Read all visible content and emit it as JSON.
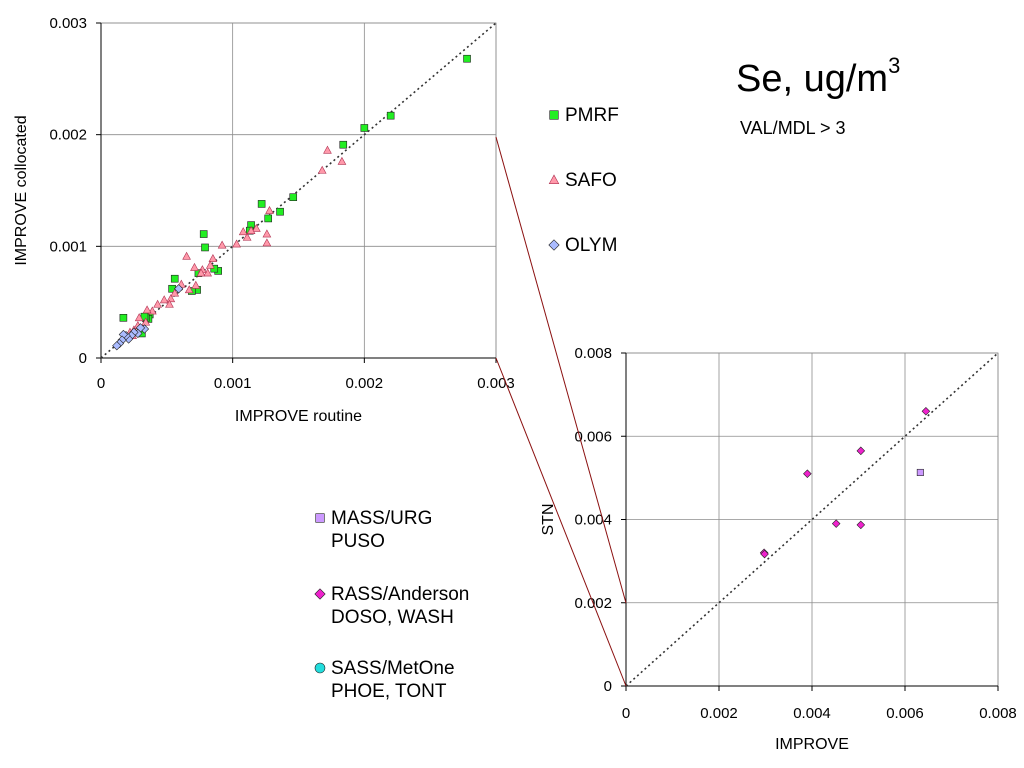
{
  "title": {
    "main": "Se, ug/m",
    "sup": "3",
    "subtitle": "VAL/MDL > 3"
  },
  "colors": {
    "pmrf": "#22ee22",
    "safo": "#ff99aa",
    "olym": "#aabbff",
    "mass": "#cc99ff",
    "rass": "#ee22cc",
    "sass": "#22dddd",
    "zoom_line": "#8b1010"
  },
  "legend_top": [
    {
      "label": "PMRF",
      "marker": "square",
      "color": "#22ee22"
    },
    {
      "label": "SAFO",
      "marker": "triangle",
      "color": "#ff99aa"
    },
    {
      "label": "OLYM",
      "marker": "diamond",
      "color": "#aabbff"
    }
  ],
  "legend_bottom": [
    {
      "label": "MASS/URG\nPUSO",
      "marker": "square",
      "color": "#cc99ff"
    },
    {
      "label": "RASS/Anderson\nDOSO, WASH",
      "marker": "diamond",
      "color": "#ee22cc"
    },
    {
      "label": "SASS/MetOne\nPHOE, TONT",
      "marker": "circle",
      "color": "#22dddd"
    }
  ],
  "chart_data": [
    {
      "type": "scatter",
      "xlabel": "IMPROVE routine",
      "ylabel": "IMPROVE collocated",
      "xlim": [
        0,
        0.003
      ],
      "ylim": [
        0,
        0.003
      ],
      "xticks": [
        "0",
        "0.001",
        "0.002",
        "0.003"
      ],
      "yticks": [
        "0",
        "0.001",
        "0.002",
        "0.003"
      ],
      "grid": true,
      "reference_line": "1:1 dotted",
      "series": [
        {
          "name": "PMRF",
          "marker": "square",
          "color": "#22ee22",
          "points": [
            [
              0.00278,
              0.00268
            ],
            [
              0.0022,
              0.00217
            ],
            [
              0.002,
              0.00206
            ],
            [
              0.00184,
              0.00191
            ],
            [
              0.00146,
              0.00144
            ],
            [
              0.00136,
              0.00131
            ],
            [
              0.00127,
              0.00125
            ],
            [
              0.00122,
              0.00138
            ],
            [
              0.00114,
              0.00119
            ],
            [
              0.00113,
              0.00114
            ],
            [
              0.00078,
              0.00111
            ],
            [
              0.00079,
              0.00099
            ],
            [
              0.00089,
              0.00078
            ],
            [
              0.00086,
              0.0008
            ],
            [
              0.00074,
              0.00076
            ],
            [
              0.00073,
              0.00061
            ],
            [
              0.00069,
              0.0006
            ],
            [
              0.00056,
              0.00071
            ],
            [
              0.00054,
              0.00062
            ],
            [
              0.00037,
              0.00039
            ],
            [
              0.00036,
              0.00035
            ],
            [
              0.00034,
              0.00036
            ],
            [
              0.00033,
              0.00037
            ],
            [
              0.00031,
              0.00022
            ],
            [
              0.00017,
              0.00036
            ]
          ]
        },
        {
          "name": "SAFO",
          "marker": "triangle",
          "color": "#ff99aa",
          "points": [
            [
              0.00172,
              0.00186
            ],
            [
              0.00183,
              0.00176
            ],
            [
              0.00168,
              0.00168
            ],
            [
              0.00128,
              0.00132
            ],
            [
              0.00126,
              0.00111
            ],
            [
              0.00126,
              0.00103
            ],
            [
              0.00118,
              0.00116
            ],
            [
              0.00114,
              0.00114
            ],
            [
              0.00111,
              0.00108
            ],
            [
              0.00108,
              0.00113
            ],
            [
              0.00103,
              0.00102
            ],
            [
              0.00092,
              0.00101
            ],
            [
              0.00085,
              0.00089
            ],
            [
              0.00083,
              0.00083
            ],
            [
              0.00081,
              0.00076
            ],
            [
              0.00077,
              0.00079
            ],
            [
              0.00076,
              0.00076
            ],
            [
              0.00071,
              0.00081
            ],
            [
              0.00065,
              0.00091
            ],
            [
              0.00072,
              0.00065
            ],
            [
              0.00067,
              0.00061
            ],
            [
              0.00061,
              0.00066
            ],
            [
              0.00056,
              0.00058
            ],
            [
              0.00053,
              0.00053
            ],
            [
              0.00052,
              0.00048
            ],
            [
              0.00048,
              0.00052
            ],
            [
              0.00043,
              0.00048
            ],
            [
              0.00039,
              0.00042
            ],
            [
              0.00035,
              0.00043
            ],
            [
              0.00034,
              0.00032
            ],
            [
              0.00029,
              0.00036
            ],
            [
              0.00028,
              0.00029
            ],
            [
              0.00025,
              0.00025
            ],
            [
              0.00024,
              0.0002
            ],
            [
              0.00022,
              0.00023
            ],
            [
              0.0003,
              0.00027
            ]
          ]
        },
        {
          "name": "OLYM",
          "marker": "diamond",
          "color": "#aabbff",
          "points": [
            [
              0.00059,
              0.00062
            ],
            [
              0.00033,
              0.00026
            ],
            [
              0.0003,
              0.00027
            ],
            [
              0.00028,
              0.00022
            ],
            [
              0.00025,
              0.00023
            ],
            [
              0.00023,
              0.0002
            ],
            [
              0.00021,
              0.00017
            ],
            [
              0.00019,
              0.0002
            ],
            [
              0.00017,
              0.00021
            ],
            [
              0.00016,
              0.00016
            ],
            [
              0.00014,
              0.00013
            ],
            [
              0.00012,
              0.00011
            ]
          ]
        }
      ]
    },
    {
      "type": "scatter",
      "xlabel": "IMPROVE",
      "ylabel": "STN",
      "xlim": [
        0,
        0.008
      ],
      "ylim": [
        0,
        0.008
      ],
      "xticks": [
        "0",
        "0.002",
        "0.004",
        "0.006",
        "0.008"
      ],
      "yticks": [
        "0",
        "0.002",
        "0.004",
        "0.006",
        "0.008"
      ],
      "grid": true,
      "reference_line": "1:1 dotted",
      "series": [
        {
          "name": "MASS/URG",
          "marker": "square",
          "color": "#cc99ff",
          "points": [
            [
              0.00633,
              0.00513
            ]
          ]
        },
        {
          "name": "RASS/Anderson",
          "marker": "diamond",
          "color": "#ee22cc",
          "points": [
            [
              0.00645,
              0.0066
            ],
            [
              0.00505,
              0.00565
            ],
            [
              0.0039,
              0.0051
            ],
            [
              0.00452,
              0.0039
            ],
            [
              0.00505,
              0.00387
            ],
            [
              0.00297,
              0.0032
            ],
            [
              0.00298,
              0.00317
            ]
          ]
        },
        {
          "name": "SASS/MetOne",
          "marker": "circle",
          "color": "#22dddd",
          "points": []
        }
      ]
    }
  ]
}
